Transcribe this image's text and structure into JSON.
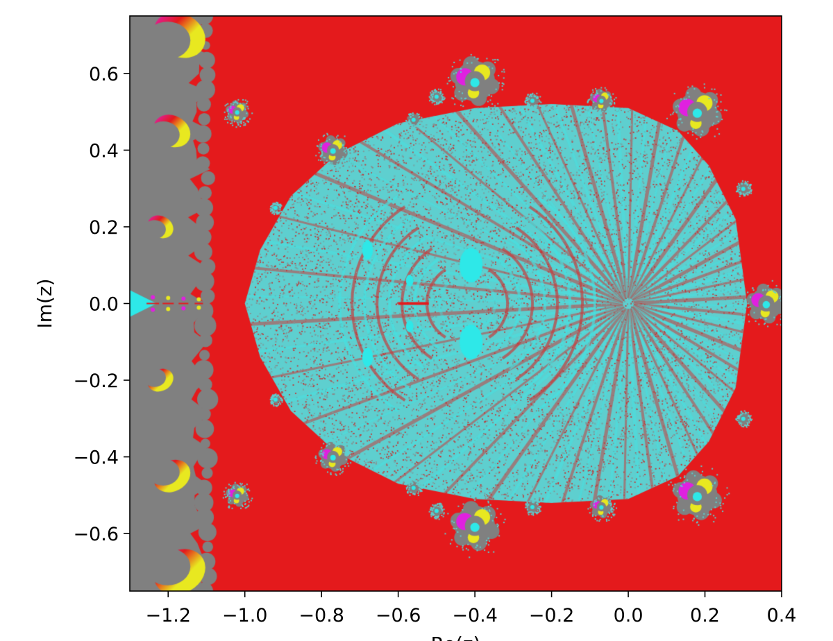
{
  "chart_data": {
    "type": "heatmap",
    "title": "",
    "xlabel": "Re(z)",
    "ylabel": "Im(z)",
    "xlim": [
      -1.3,
      0.4
    ],
    "ylim": [
      -0.75,
      0.75
    ],
    "xticks": [
      -1.2,
      -1.0,
      -0.8,
      -0.6,
      -0.4,
      -0.2,
      0.0,
      0.2,
      0.4
    ],
    "yticks": [
      -0.6,
      -0.4,
      -0.2,
      0.0,
      0.2,
      0.4,
      0.6
    ],
    "xtick_labels": [
      "−1.2",
      "−1.0",
      "−0.8",
      "−0.6",
      "−0.4",
      "−0.2",
      "0.0",
      "0.2",
      "0.4"
    ],
    "ytick_labels": [
      "−0.6",
      "−0.4",
      "−0.2",
      "0.0",
      "0.2",
      "0.4",
      "0.6"
    ],
    "grid": false,
    "legend": "none",
    "colors": {
      "background": "#e41a1c",
      "main_body": "#5ecfcf",
      "main_speckle": "#c23a3a",
      "bright_cyan": "#2ee8e8",
      "gray": "#808080",
      "yellow": "#e8e820",
      "magenta": "#e020e0"
    },
    "main_body": {
      "outline": [
        [
          -1.0,
          0.0
        ],
        [
          -0.96,
          0.14
        ],
        [
          -0.88,
          0.28
        ],
        [
          -0.76,
          0.39
        ],
        [
          -0.6,
          0.47
        ],
        [
          -0.4,
          0.51
        ],
        [
          -0.2,
          0.52
        ],
        [
          0.0,
          0.51
        ],
        [
          0.13,
          0.45
        ],
        [
          0.21,
          0.36
        ],
        [
          0.28,
          0.22
        ],
        [
          0.31,
          0.0
        ],
        [
          0.28,
          -0.22
        ],
        [
          0.21,
          -0.36
        ],
        [
          0.13,
          -0.45
        ],
        [
          0.0,
          -0.51
        ],
        [
          -0.2,
          -0.52
        ],
        [
          -0.4,
          -0.51
        ],
        [
          -0.6,
          -0.47
        ],
        [
          -0.76,
          -0.39
        ],
        [
          -0.88,
          -0.28
        ],
        [
          -0.96,
          -0.14
        ]
      ],
      "ray_center": [
        0.0,
        0.0
      ]
    },
    "satellites": [
      {
        "x": -0.4,
        "y": 0.58,
        "r": 0.075
      },
      {
        "x": -0.4,
        "y": -0.58,
        "r": 0.075
      },
      {
        "x": 0.18,
        "y": 0.5,
        "r": 0.075
      },
      {
        "x": 0.18,
        "y": -0.5,
        "r": 0.075
      },
      {
        "x": 0.36,
        "y": 0.0,
        "r": 0.06
      },
      {
        "x": -0.77,
        "y": 0.4,
        "r": 0.045
      },
      {
        "x": -0.77,
        "y": -0.4,
        "r": 0.045
      },
      {
        "x": -0.07,
        "y": 0.53,
        "r": 0.035
      },
      {
        "x": -0.07,
        "y": -0.53,
        "r": 0.035
      },
      {
        "x": -1.02,
        "y": 0.5,
        "r": 0.035
      },
      {
        "x": -1.02,
        "y": -0.5,
        "r": 0.035
      },
      {
        "x": -0.25,
        "y": 0.53,
        "r": 0.02
      },
      {
        "x": -0.25,
        "y": -0.53,
        "r": 0.02
      },
      {
        "x": -0.56,
        "y": 0.48,
        "r": 0.02
      },
      {
        "x": -0.56,
        "y": -0.48,
        "r": 0.02
      },
      {
        "x": -0.5,
        "y": 0.54,
        "r": 0.02
      },
      {
        "x": -0.5,
        "y": -0.54,
        "r": 0.02
      },
      {
        "x": 0.3,
        "y": 0.3,
        "r": 0.02
      },
      {
        "x": 0.3,
        "y": -0.3,
        "r": 0.02
      },
      {
        "x": -0.92,
        "y": 0.25,
        "r": 0.015
      },
      {
        "x": -0.92,
        "y": -0.25,
        "r": 0.015
      }
    ],
    "left_region": {
      "x_min": -1.3,
      "x_max": -1.12,
      "bulbs": [
        {
          "x": -1.17,
          "y": 0.7,
          "r": 0.07
        },
        {
          "x": -1.17,
          "y": -0.7,
          "r": 0.07
        },
        {
          "x": -1.19,
          "y": 0.45,
          "r": 0.05
        },
        {
          "x": -1.19,
          "y": -0.45,
          "r": 0.05
        },
        {
          "x": -1.22,
          "y": 0.2,
          "r": 0.035
        },
        {
          "x": -1.22,
          "y": -0.2,
          "r": 0.035
        }
      ],
      "cusp_y": 0.0
    },
    "bright_patches": [
      {
        "x": -0.41,
        "y": 0.1,
        "rx": 0.03,
        "ry": 0.045
      },
      {
        "x": -0.41,
        "y": -0.1,
        "rx": 0.03,
        "ry": 0.045
      },
      {
        "x": -0.68,
        "y": 0.14,
        "rx": 0.014,
        "ry": 0.025
      },
      {
        "x": -0.68,
        "y": -0.14,
        "rx": 0.014,
        "ry": 0.025
      },
      {
        "x": -0.57,
        "y": 0.06,
        "rx": 0.01,
        "ry": 0.015
      },
      {
        "x": -0.57,
        "y": -0.06,
        "rx": 0.01,
        "ry": 0.015
      }
    ],
    "dark_streak": {
      "x_from": -0.6,
      "x_to": -0.52,
      "y": 0.0
    }
  }
}
